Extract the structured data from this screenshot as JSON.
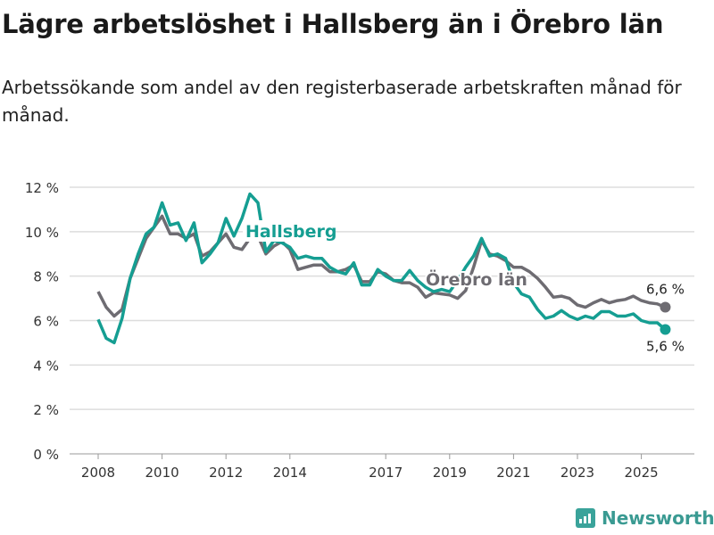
{
  "title": "Lägre arbetslöshet i Hallsberg än i Örebro län",
  "subtitle": "Arbetssökande som andel av den registerbaserade arbetskraften månad för månad.",
  "brand": "Newsworthy",
  "colors": {
    "hallsberg": "#159e92",
    "orebro": "#6e6c72",
    "grid": "#dddddd"
  },
  "chart_data": {
    "type": "line",
    "title": "Lägre arbetslöshet i Hallsberg än i Örebro län",
    "xlabel": "",
    "ylabel": "",
    "ylim": [
      0,
      12
    ],
    "xlim": [
      2007.1,
      2026.6
    ],
    "yticks": [
      0,
      2,
      4,
      6,
      8,
      10,
      12
    ],
    "ytick_labels": [
      "0 %",
      "2 %",
      "4 %",
      "6 %",
      "8 %",
      "10 %",
      "12 %"
    ],
    "xticks": [
      2008,
      2010,
      2012,
      2014,
      2017,
      2019,
      2021,
      2023,
      2025
    ],
    "xtick_labels": [
      "2008",
      "2010",
      "2012",
      "2014",
      "2017",
      "2019",
      "2021",
      "2023",
      "2025"
    ],
    "grid": true,
    "x_start": 2008.0,
    "x_step": 0.25,
    "series": [
      {
        "name": "Hallsberg",
        "color": "#159e92",
        "end_label": "5,6 %",
        "values": [
          6.05,
          5.2,
          5.0,
          6.1,
          7.9,
          9.0,
          9.9,
          10.2,
          11.3,
          10.3,
          10.4,
          9.6,
          10.4,
          8.6,
          9.0,
          9.5,
          10.6,
          9.8,
          10.6,
          11.7,
          11.3,
          9.1,
          9.6,
          9.5,
          9.3,
          8.8,
          8.9,
          8.8,
          8.8,
          8.4,
          8.2,
          8.1,
          8.6,
          7.6,
          7.6,
          8.3,
          8.0,
          7.8,
          7.8,
          8.25,
          7.8,
          7.5,
          7.3,
          7.4,
          7.3,
          7.8,
          8.4,
          8.9,
          9.7,
          8.9,
          9.0,
          8.8,
          7.7,
          7.2,
          7.05,
          6.5,
          6.1,
          6.2,
          6.45,
          6.2,
          6.05,
          6.2,
          6.1,
          6.4,
          6.4,
          6.2,
          6.2,
          6.3,
          6.0,
          5.9,
          5.9,
          5.6
        ]
      },
      {
        "name": "Örebro län",
        "color": "#6e6c72",
        "end_label": "6,6 %",
        "values": [
          7.3,
          6.6,
          6.2,
          6.5,
          7.9,
          8.8,
          9.7,
          10.2,
          10.7,
          9.9,
          9.9,
          9.7,
          9.9,
          8.9,
          9.1,
          9.5,
          9.9,
          9.3,
          9.2,
          9.7,
          9.8,
          9.0,
          9.35,
          9.55,
          9.2,
          8.3,
          8.4,
          8.5,
          8.5,
          8.2,
          8.2,
          8.3,
          8.5,
          7.75,
          7.75,
          8.2,
          8.1,
          7.8,
          7.7,
          7.7,
          7.5,
          7.05,
          7.25,
          7.2,
          7.15,
          7.0,
          7.35,
          8.4,
          9.6,
          9.0,
          8.9,
          8.7,
          8.4,
          8.4,
          8.2,
          7.9,
          7.5,
          7.05,
          7.1,
          7.0,
          6.7,
          6.6,
          6.8,
          6.95,
          6.8,
          6.9,
          6.95,
          7.1,
          6.9,
          6.8,
          6.75,
          6.6
        ]
      }
    ]
  }
}
